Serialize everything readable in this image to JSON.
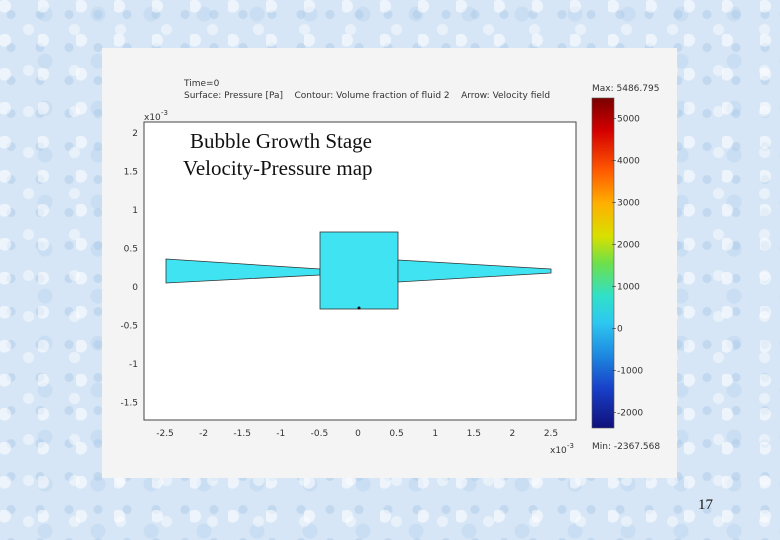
{
  "plot": {
    "time_label": "Time=0",
    "surface_label": "Surface: Pressure [Pa]",
    "contour_label": "Contour: Volume fraction of fluid 2",
    "arrow_label": "Arrow: Velocity field",
    "y_multiplier": "x10",
    "y_exponent": "-3",
    "x_multiplier": "x10",
    "x_exponent": "-3",
    "x_ticks": [
      "-2.5",
      "-2",
      "-1.5",
      "-1",
      "-0.5",
      "0",
      "0.5",
      "1",
      "1.5",
      "2",
      "2.5"
    ],
    "y_ticks": [
      "2",
      "1.5",
      "1",
      "0.5",
      "0",
      "-0.5",
      "-1",
      "-1.5"
    ],
    "colorbar": {
      "max_label": "Max: 5486.795",
      "min_label": "Min: -2367.568",
      "ticks": [
        "5000",
        "4000",
        "3000",
        "2000",
        "1000",
        "0",
        "-1000",
        "-2000"
      ],
      "max": 5486.795,
      "min": -2367.568
    },
    "fill_color": "#3fe3f2"
  },
  "overlay": {
    "title_line1": "Bubble Growth Stage",
    "title_line2": "Velocity-Pressure map"
  },
  "page_number": "17"
}
